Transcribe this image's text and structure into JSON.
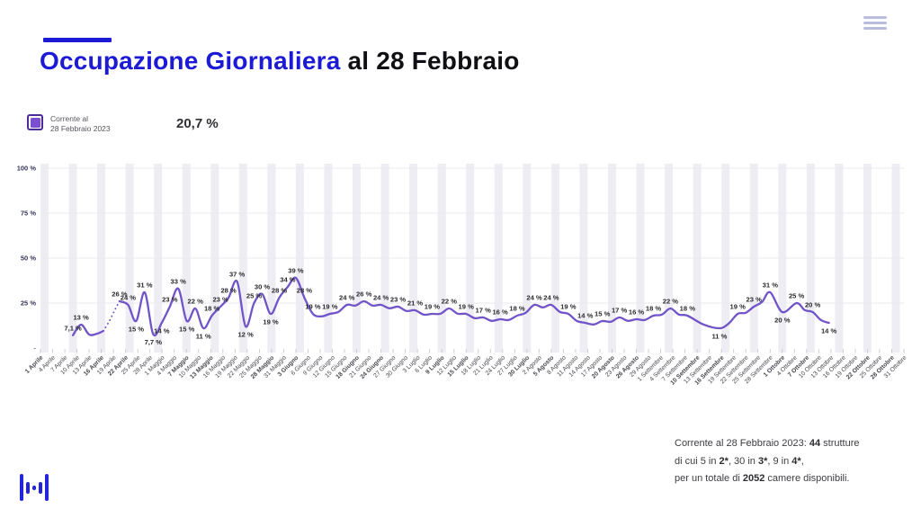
{
  "header": {
    "title_highlight": "Occupazione Giornaliera",
    "title_rest": " al 28 Febbraio",
    "accent_color": "#1d1ad6"
  },
  "icons": {
    "menu": "hamburger-icon",
    "logo": "equalizer-logo-icon",
    "legend_swatch": "series-swatch-icon"
  },
  "legend": {
    "label_line1": "Corrente al",
    "label_line2": "28 Febbraio 2023",
    "value": "20,7 %"
  },
  "footer": {
    "lines": [
      [
        {
          "t": "Corrente al 28 Febbraio 2023: ",
          "b": false
        },
        {
          "t": "44",
          "b": true
        },
        {
          "t": " strutture",
          "b": false
        }
      ],
      [
        {
          "t": "di cui  5 in ",
          "b": false
        },
        {
          "t": "2*",
          "b": true
        },
        {
          "t": ", 30 in ",
          "b": false
        },
        {
          "t": "3*",
          "b": true
        },
        {
          "t": ", 9 in ",
          "b": false
        },
        {
          "t": "4*",
          "b": true
        },
        {
          "t": ",",
          "b": false
        }
      ],
      [
        {
          "t": "per un totale di ",
          "b": false
        },
        {
          "t": "2052",
          "b": true
        },
        {
          "t": " camere disponibili.",
          "b": false
        }
      ]
    ]
  },
  "chart_data": {
    "type": "line",
    "title": "Occupazione Giornaliera al 28 Febbraio",
    "series_name": "Corrente al 28 Febbraio 2023",
    "unit": "%",
    "ylim": [
      0,
      100
    ],
    "grid": "horizontal",
    "legend_position": "top-left",
    "x_start_date": "1 Aprile",
    "x_end_date": "31 Ottobre",
    "x_axis_note": "ticks every 3 days; weekend dates bold with shaded vertical bands; day index counted from 1 Aprile",
    "colors": {
      "line": "#7154c8",
      "band": "#ededf3",
      "grid": "#e9e9ef",
      "y_label": "#34345c",
      "x_label": "#46464f",
      "tick": "#c9c9d5",
      "point_label": "#2a2a2e"
    },
    "y_ticks": [
      {
        "v": 100,
        "label": "100 %"
      },
      {
        "v": 75,
        "label": "75 %"
      },
      {
        "v": 50,
        "label": "50 %"
      },
      {
        "v": 25,
        "label": "25 %"
      }
    ],
    "y_zero_dash": "-",
    "x_ticks": [
      {
        "day": 0,
        "label": "1 Aprile",
        "bold": true
      },
      {
        "day": 3,
        "label": "4 Aprile",
        "bold": false
      },
      {
        "day": 6,
        "label": "7 Aprile",
        "bold": false
      },
      {
        "day": 9,
        "label": "10 Aprile",
        "bold": false
      },
      {
        "day": 12,
        "label": "13 Aprile",
        "bold": false
      },
      {
        "day": 15,
        "label": "16 Aprile",
        "bold": true
      },
      {
        "day": 18,
        "label": "19 Aprile",
        "bold": false
      },
      {
        "day": 21,
        "label": "22 Aprile",
        "bold": true
      },
      {
        "day": 24,
        "label": "25 Aprile",
        "bold": false
      },
      {
        "day": 27,
        "label": "28 Aprile",
        "bold": false
      },
      {
        "day": 30,
        "label": "1 Maggio",
        "bold": false
      },
      {
        "day": 33,
        "label": "4 Maggio",
        "bold": false
      },
      {
        "day": 36,
        "label": "7 Maggio",
        "bold": true
      },
      {
        "day": 39,
        "label": "10 Maggio",
        "bold": false
      },
      {
        "day": 42,
        "label": "13 Maggio",
        "bold": true
      },
      {
        "day": 45,
        "label": "16 Maggio",
        "bold": false
      },
      {
        "day": 48,
        "label": "19 Maggio",
        "bold": false
      },
      {
        "day": 51,
        "label": "22 Maggio",
        "bold": false
      },
      {
        "day": 54,
        "label": "25 Maggio",
        "bold": false
      },
      {
        "day": 57,
        "label": "28 Maggio",
        "bold": true
      },
      {
        "day": 60,
        "label": "31 Maggio",
        "bold": false
      },
      {
        "day": 63,
        "label": "3 Giugno",
        "bold": true
      },
      {
        "day": 66,
        "label": "6 Giugno",
        "bold": false
      },
      {
        "day": 69,
        "label": "9 Giugno",
        "bold": false
      },
      {
        "day": 72,
        "label": "12 Giugno",
        "bold": false
      },
      {
        "day": 75,
        "label": "15 Giugno",
        "bold": false
      },
      {
        "day": 78,
        "label": "18 Giugno",
        "bold": true
      },
      {
        "day": 81,
        "label": "21 Giugno",
        "bold": false
      },
      {
        "day": 84,
        "label": "24 Giugno",
        "bold": true
      },
      {
        "day": 87,
        "label": "27 Giugno",
        "bold": false
      },
      {
        "day": 90,
        "label": "30 Giugno",
        "bold": false
      },
      {
        "day": 93,
        "label": "3 Luglio",
        "bold": false
      },
      {
        "day": 96,
        "label": "6 Luglio",
        "bold": false
      },
      {
        "day": 99,
        "label": "9 Luglio",
        "bold": true
      },
      {
        "day": 102,
        "label": "12 Luglio",
        "bold": false
      },
      {
        "day": 105,
        "label": "15 Luglio",
        "bold": true
      },
      {
        "day": 108,
        "label": "18 Luglio",
        "bold": false
      },
      {
        "day": 111,
        "label": "21 Luglio",
        "bold": false
      },
      {
        "day": 114,
        "label": "24 Luglio",
        "bold": false
      },
      {
        "day": 117,
        "label": "27 Luglio",
        "bold": false
      },
      {
        "day": 120,
        "label": "30 Luglio",
        "bold": true
      },
      {
        "day": 123,
        "label": "2 Agosto",
        "bold": false
      },
      {
        "day": 126,
        "label": "5 Agosto",
        "bold": true
      },
      {
        "day": 129,
        "label": "8 Agosto",
        "bold": false
      },
      {
        "day": 132,
        "label": "11 Agosto",
        "bold": false
      },
      {
        "day": 135,
        "label": "14 Agosto",
        "bold": false
      },
      {
        "day": 138,
        "label": "17 Agosto",
        "bold": false
      },
      {
        "day": 141,
        "label": "20 Agosto",
        "bold": true
      },
      {
        "day": 144,
        "label": "23 Agosto",
        "bold": false
      },
      {
        "day": 147,
        "label": "26 Agosto",
        "bold": true
      },
      {
        "day": 150,
        "label": "29 Agosto",
        "bold": false
      },
      {
        "day": 153,
        "label": "1 Settembre",
        "bold": false
      },
      {
        "day": 156,
        "label": "4 Settembre",
        "bold": false
      },
      {
        "day": 159,
        "label": "7 Settembre",
        "bold": false
      },
      {
        "day": 162,
        "label": "10 Settembre",
        "bold": true
      },
      {
        "day": 165,
        "label": "13 Settembre",
        "bold": false
      },
      {
        "day": 168,
        "label": "16 Settembre",
        "bold": true
      },
      {
        "day": 171,
        "label": "19 Settembre",
        "bold": false
      },
      {
        "day": 174,
        "label": "22 Settembre",
        "bold": false
      },
      {
        "day": 177,
        "label": "25 Settembre",
        "bold": false
      },
      {
        "day": 180,
        "label": "28 Settembre",
        "bold": false
      },
      {
        "day": 183,
        "label": "1 Ottobre",
        "bold": true
      },
      {
        "day": 186,
        "label": "4 Ottobre",
        "bold": false
      },
      {
        "day": 189,
        "label": "7 Ottobre",
        "bold": true
      },
      {
        "day": 192,
        "label": "10 Ottobre",
        "bold": false
      },
      {
        "day": 195,
        "label": "13 Ottobre",
        "bold": false
      },
      {
        "day": 198,
        "label": "16 Ottobre",
        "bold": false
      },
      {
        "day": 201,
        "label": "19 Ottobre",
        "bold": false
      },
      {
        "day": 204,
        "label": "22 Ottobre",
        "bold": true
      },
      {
        "day": 207,
        "label": "25 Ottobre",
        "bold": false
      },
      {
        "day": 210,
        "label": "28 Ottobre",
        "bold": true
      },
      {
        "day": 213,
        "label": "31 Ottobre",
        "bold": false
      }
    ],
    "weekend_bands": {
      "first_saturday_day": 0,
      "period_days": 7,
      "width_days": 2
    },
    "segments": {
      "intro_solid": [
        [
          8,
          7.1,
          "7,1 %",
          "a"
        ],
        [
          10,
          13,
          "13 %",
          "a"
        ],
        [
          12,
          7.5,
          "",
          ""
        ],
        [
          14,
          8,
          "",
          ""
        ],
        [
          15.5,
          9.5,
          "",
          ""
        ]
      ],
      "dotted_gap": [
        [
          15.5,
          9.5,
          "",
          ""
        ],
        [
          17,
          15,
          "",
          ""
        ],
        [
          18.3,
          21,
          "",
          ""
        ],
        [
          19.5,
          26,
          "",
          ""
        ]
      ],
      "main": [
        [
          19.5,
          26,
          "26 %",
          "a"
        ],
        [
          21.6,
          24,
          "24 %",
          "a"
        ],
        [
          23.6,
          15,
          "15 %",
          "b"
        ],
        [
          25.7,
          31,
          "31 %",
          "a"
        ],
        [
          27.8,
          7.7,
          "7,7 %",
          "b"
        ],
        [
          29.9,
          14,
          "14 %",
          "b"
        ],
        [
          31.9,
          23,
          "23 %",
          "a"
        ],
        [
          34,
          33,
          "33 %",
          "a"
        ],
        [
          36.1,
          15,
          "15 %",
          "b"
        ],
        [
          38.2,
          22,
          "22 %",
          "a"
        ],
        [
          40.2,
          11,
          "11 %",
          "b"
        ],
        [
          42.3,
          18,
          "18 %",
          "a"
        ],
        [
          44.4,
          23,
          "23 %",
          "a"
        ],
        [
          46.4,
          28,
          "28 %",
          "a"
        ],
        [
          48.5,
          37,
          "37 %",
          "a"
        ],
        [
          50.6,
          12,
          "12 %",
          "b"
        ],
        [
          52.7,
          25,
          "25 %",
          "a"
        ],
        [
          54.7,
          30,
          "30 %",
          "a"
        ],
        [
          56.8,
          19,
          "19 %",
          "b"
        ],
        [
          58.9,
          28,
          "28 %",
          "a"
        ],
        [
          61,
          34,
          "34 %",
          "a"
        ],
        [
          63,
          39,
          "39 %",
          "a"
        ],
        [
          65.1,
          28,
          "28 %",
          "a"
        ],
        [
          67.2,
          19,
          "19 %",
          "a"
        ],
        [
          71.4,
          19,
          "19 %",
          "a"
        ],
        [
          75.6,
          24,
          "24 %",
          "a"
        ],
        [
          79.8,
          26,
          "26 %",
          "a"
        ],
        [
          84,
          24,
          "24 %",
          "a"
        ],
        [
          88.2,
          23,
          "23 %",
          "a"
        ],
        [
          92.4,
          21,
          "21 %",
          "a"
        ],
        [
          96.6,
          19,
          "19 %",
          "a"
        ],
        [
          100.8,
          22,
          "22 %",
          "a"
        ],
        [
          105,
          19,
          "19 %",
          "a"
        ],
        [
          109.2,
          17,
          "17 %",
          "a"
        ],
        [
          113.4,
          16,
          "16 %",
          "a"
        ],
        [
          117.6,
          18,
          "18 %",
          "a"
        ],
        [
          121.8,
          24,
          "24 %",
          "a"
        ],
        [
          126,
          24,
          "24 %",
          "a"
        ],
        [
          130.2,
          19,
          "19 %",
          "a"
        ],
        [
          134.4,
          14,
          "14 %",
          "a"
        ],
        [
          138.6,
          15,
          "15 %",
          "a"
        ],
        [
          142.8,
          17,
          "17 %",
          "a"
        ],
        [
          147,
          16,
          "16 %",
          "a"
        ],
        [
          151.2,
          18,
          "18 %",
          "a"
        ],
        [
          155.4,
          22,
          "22 %",
          "a"
        ],
        [
          159.6,
          18,
          "18 %",
          "a"
        ],
        [
          167.5,
          11,
          "11 %",
          "b"
        ],
        [
          172,
          19,
          "19 %",
          "a"
        ],
        [
          176,
          23,
          "23 %",
          "a"
        ],
        [
          180,
          31,
          "31 %",
          "a"
        ],
        [
          183,
          20,
          "20 %",
          "b"
        ],
        [
          186.5,
          25,
          "25 %",
          "a"
        ],
        [
          190.5,
          20,
          "20 %",
          "a"
        ],
        [
          194.5,
          14,
          "14 %",
          "b"
        ]
      ]
    }
  }
}
